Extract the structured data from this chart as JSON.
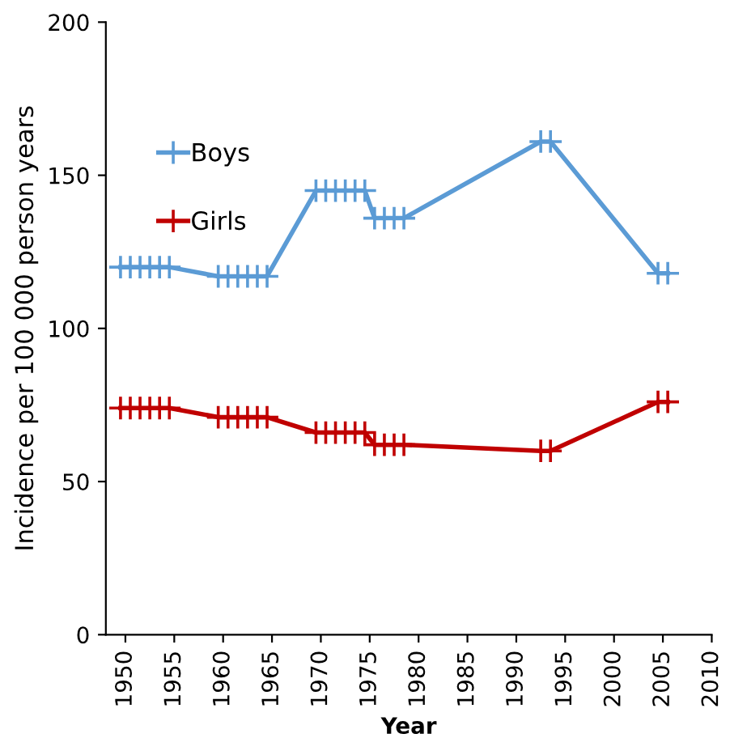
{
  "chart_data": {
    "type": "line",
    "xlabel": "Year",
    "ylabel": "Incidence per 100 000 person years",
    "xlim": [
      1948,
      2010
    ],
    "xticks": [
      1950,
      1955,
      1960,
      1965,
      1970,
      1975,
      1980,
      1985,
      1990,
      1995,
      2000,
      2005,
      2010
    ],
    "ylim": [
      0,
      200
    ],
    "yticks": [
      0,
      50,
      100,
      150,
      200
    ],
    "grid": false,
    "legend": "top left",
    "marker": "cross",
    "line_style": "solid",
    "series": [
      {
        "name": "Boys",
        "color": "#5b9bd5",
        "x": [
          1949.5,
          1950.5,
          1951.5,
          1952.5,
          1953.5,
          1954.5,
          1959.5,
          1960.5,
          1961.5,
          1962.5,
          1963.5,
          1964.5,
          1969.5,
          1970.5,
          1971.5,
          1972.5,
          1973.5,
          1974.5,
          1975.5,
          1976.5,
          1977.5,
          1978.5,
          1992.5,
          1993.5,
          2004.5,
          2005.5
        ],
        "values": [
          120,
          120,
          120,
          120,
          120,
          120,
          117,
          117,
          117,
          117,
          117,
          117,
          145,
          145,
          145,
          145,
          145,
          145,
          136,
          136,
          136,
          136,
          161,
          161,
          118,
          118
        ]
      },
      {
        "name": "Girls",
        "color": "#c00000",
        "x": [
          1949.5,
          1950.5,
          1951.5,
          1952.5,
          1953.5,
          1954.5,
          1959.5,
          1960.5,
          1961.5,
          1962.5,
          1963.5,
          1964.5,
          1969.5,
          1970.5,
          1971.5,
          1972.5,
          1973.5,
          1974.5,
          1975.5,
          1976.5,
          1977.5,
          1978.5,
          1992.5,
          1993.5,
          2004.5,
          2005.5
        ],
        "values": [
          74,
          74,
          74,
          74,
          74,
          74,
          71,
          71,
          71,
          71,
          71,
          71,
          66,
          66,
          66,
          66,
          66,
          66,
          62,
          62,
          62,
          62,
          60,
          60,
          76,
          76
        ]
      }
    ]
  }
}
